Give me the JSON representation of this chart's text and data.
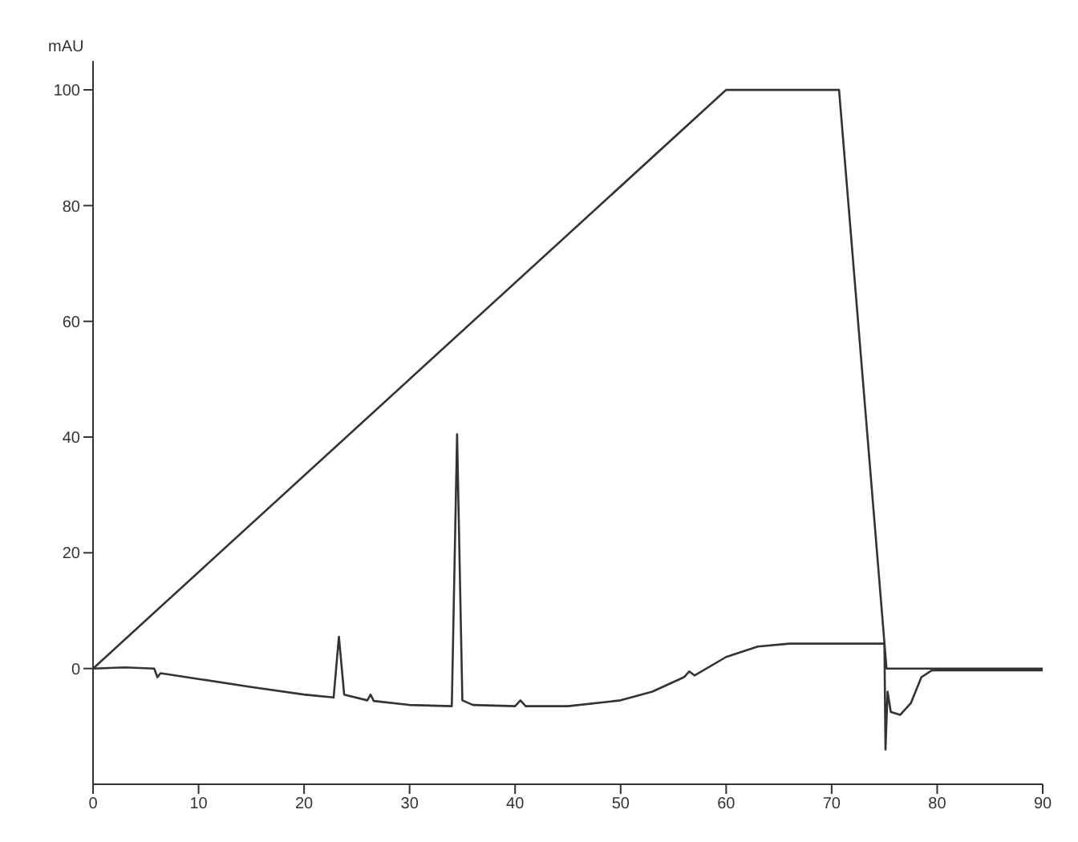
{
  "chart_data": {
    "type": "line",
    "ylabel": "mAU",
    "xlim": [
      0,
      90
    ],
    "xticks": [
      0,
      10,
      20,
      30,
      40,
      50,
      60,
      70,
      80,
      90
    ],
    "ylim": [
      -20,
      105
    ],
    "yticks": [
      0,
      20,
      40,
      60,
      80,
      100
    ],
    "grid": false,
    "legend": false,
    "marker": "none",
    "line_style": "solid",
    "series": [
      {
        "color": "#333333",
        "x": [
          0,
          60,
          70.7,
          75.2,
          90
        ],
        "values": [
          0,
          100,
          100,
          0,
          0
        ]
      },
      {
        "color": "#333333",
        "x": [
          0,
          3,
          5.8,
          6.1,
          6.4,
          10,
          15,
          20,
          22.8,
          23.3,
          23.8,
          26,
          26.3,
          26.6,
          30,
          34,
          34.5,
          35,
          36,
          40,
          40.5,
          41,
          45,
          50,
          53,
          56,
          56.5,
          57,
          60,
          63,
          66,
          70,
          75,
          75.1,
          75.3,
          75.6,
          76.5,
          77.5,
          78.5,
          79.5,
          90
        ],
        "values": [
          0,
          0.2,
          0,
          -1.5,
          -0.8,
          -1.8,
          -3.2,
          -4.5,
          -5,
          5.5,
          -4.5,
          -5.5,
          -4.5,
          -5.6,
          -6.3,
          -6.5,
          40.5,
          -5.5,
          -6.3,
          -6.5,
          -5.5,
          -6.5,
          -6.5,
          -5.5,
          -4,
          -1.5,
          -0.5,
          -1.2,
          2,
          3.8,
          4.3,
          4.3,
          4.3,
          -14,
          -4,
          -7.5,
          -8,
          -6,
          -1.5,
          -0.3,
          -0.3
        ]
      }
    ]
  }
}
